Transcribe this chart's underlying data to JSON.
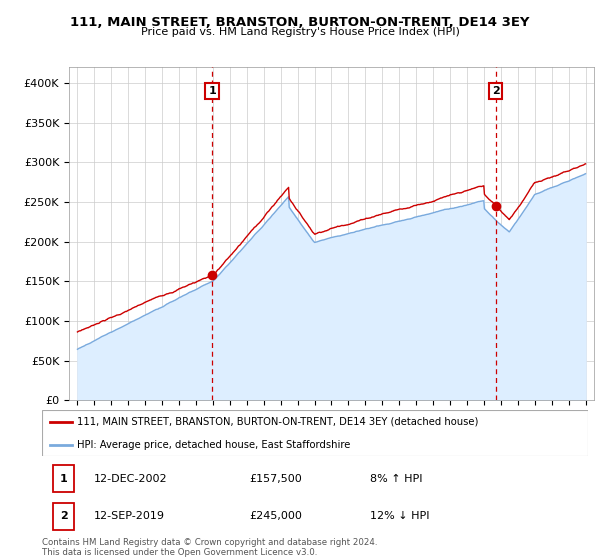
{
  "title": "111, MAIN STREET, BRANSTON, BURTON-ON-TRENT, DE14 3EY",
  "subtitle": "Price paid vs. HM Land Registry's House Price Index (HPI)",
  "legend_line1": "111, MAIN STREET, BRANSTON, BURTON-ON-TRENT, DE14 3EY (detached house)",
  "legend_line2": "HPI: Average price, detached house, East Staffordshire",
  "annotation1_date": "12-DEC-2002",
  "annotation1_price": "£157,500",
  "annotation1_hpi": "8% ↑ HPI",
  "annotation2_date": "12-SEP-2019",
  "annotation2_price": "£245,000",
  "annotation2_hpi": "12% ↓ HPI",
  "footer": "Contains HM Land Registry data © Crown copyright and database right 2024.\nThis data is licensed under the Open Government Licence v3.0.",
  "red_color": "#cc0000",
  "blue_color": "#7aaadd",
  "blue_fill_color": "#ddeeff",
  "yticks": [
    0,
    50000,
    100000,
    150000,
    200000,
    250000,
    300000,
    350000,
    400000
  ],
  "ytick_labels": [
    "£0",
    "£50K",
    "£100K",
    "£150K",
    "£200K",
    "£250K",
    "£300K",
    "£350K",
    "£400K"
  ],
  "sale1_x": 2002.95,
  "sale1_y": 157500,
  "sale2_x": 2019.7,
  "sale2_y": 245000,
  "xlim_left": 1994.5,
  "xlim_right": 2025.5,
  "ylim_top": 420000
}
